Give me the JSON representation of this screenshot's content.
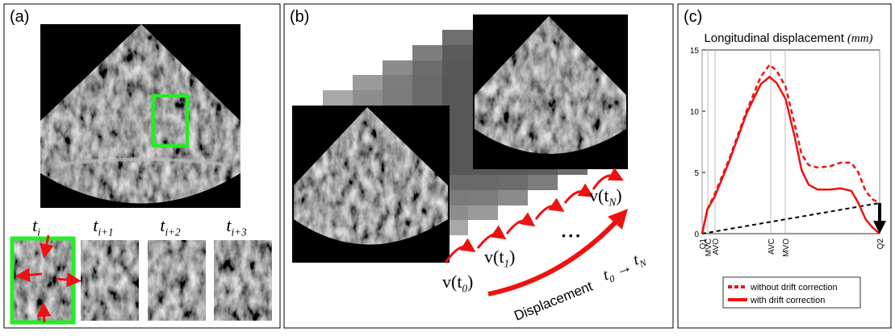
{
  "panels": {
    "a": {
      "label": "(a)",
      "thumbs": [
        {
          "main": "t",
          "sub": "i"
        },
        {
          "main": "t",
          "sub": "i+1"
        },
        {
          "main": "t",
          "sub": "i+2"
        },
        {
          "main": "t",
          "sub": "i+3"
        }
      ]
    },
    "b": {
      "label": "(b)",
      "v0": {
        "main": "v(t",
        "sub": "0",
        "end": ")"
      },
      "v1": {
        "main": "v(t",
        "sub": "1",
        "end": ")"
      },
      "vN": {
        "main": "v(t",
        "sub": "N",
        "end": ")"
      },
      "dots": "• • •",
      "displacement": "Displacement",
      "range": {
        "a": "t",
        "asub": "0",
        "arrow": " → ",
        "b": "t",
        "bsub": "N"
      }
    },
    "c": {
      "label": "(c)"
    }
  },
  "chart_data": {
    "type": "line",
    "title": "Longitudinal displacement",
    "unit": "(mm)",
    "x": [
      0,
      3,
      7,
      15,
      25,
      33,
      38,
      42,
      47,
      52,
      56,
      60,
      65,
      72,
      78,
      84,
      88,
      92,
      96,
      100
    ],
    "xlim": [
      0,
      100
    ],
    "ylim": [
      0,
      15
    ],
    "yticks": [
      0,
      5,
      10,
      15
    ],
    "events": [
      {
        "label": "Q1",
        "x": 0
      },
      {
        "label": "MVC",
        "x": 3.2
      },
      {
        "label": "AVO",
        "x": 7.3
      },
      {
        "label": "AVC",
        "x": 38.6
      },
      {
        "label": "MVO",
        "x": 46.8
      },
      {
        "label": "Q2",
        "x": 100
      }
    ],
    "series": [
      {
        "name": "without drift correction",
        "color": "#ee1111",
        "dashed": true,
        "values": [
          0,
          2,
          3.2,
          6,
          10,
          12.8,
          13.8,
          13.3,
          12,
          9,
          6.5,
          5.6,
          5.4,
          5.5,
          5.8,
          5.8,
          5,
          3.5,
          2.8,
          2.5
        ]
      },
      {
        "name": "with drift correction",
        "color": "#ee1111",
        "dashed": false,
        "values": [
          0,
          2,
          3,
          5.8,
          9.8,
          12.2,
          12.8,
          12.3,
          11,
          8,
          5.2,
          4,
          3.6,
          3.6,
          3.7,
          3.5,
          2.5,
          1.2,
          0.5,
          0
        ]
      }
    ],
    "drift_line": {
      "x": [
        0,
        100
      ],
      "values": [
        0,
        2.5
      ],
      "color": "#000000"
    }
  }
}
